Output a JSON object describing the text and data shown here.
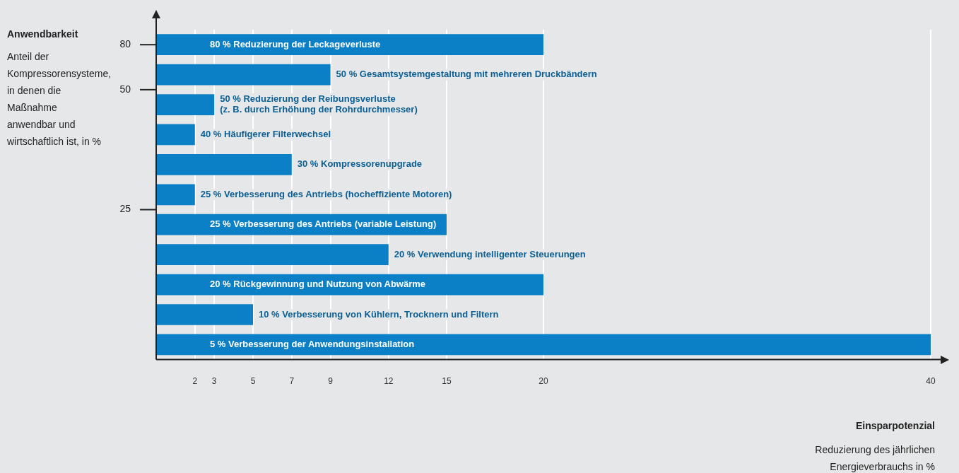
{
  "chart_data": {
    "type": "bar",
    "orientation": "horizontal",
    "xlabel": "Einsparpotenzial",
    "categories": [
      "80 % Reduzierung der Leckageverluste",
      "50 % Gesamtsystemgestaltung mit mehreren Druckbändern",
      "50 % Reduzierung der Reibungsverluste\n(z. B. durch Erhöhung der Rohrdurchmesser)",
      "40 % Häufigerer Filterwechsel",
      "30 % Kompressorenupgrade",
      "25 % Verbesserung des Antriebs (hocheffiziente Motoren)",
      "25 % Verbesserung des Antriebs (variable Leistung)",
      "20 % Verwendung intelligenter Steuerungen",
      "20 % Rückgewinnung und Nutzung von Abwärme",
      "10 % Verbesserung von Kühlern, Trocknern und Filtern",
      "5 % Verbesserung der Anwendungsinstallation"
    ],
    "values": [
      20,
      9,
      3,
      2,
      7,
      2,
      15,
      12,
      20,
      5,
      40
    ],
    "color": "#0b80c6",
    "xlim": [
      0,
      40
    ],
    "xticks": [
      2,
      3,
      5,
      7,
      9,
      12,
      15,
      20,
      40
    ],
    "grid": "x",
    "annotations": [
      "80",
      "50",
      "25",
      "Anwendbarkeit",
      "Anteil der Kompressorensysteme, in denen die Maßnahme anwendbar und wirtschaftlich ist, in %",
      "Reduzierung des jährlichen Energieverbrauchs in %"
    ]
  }
}
